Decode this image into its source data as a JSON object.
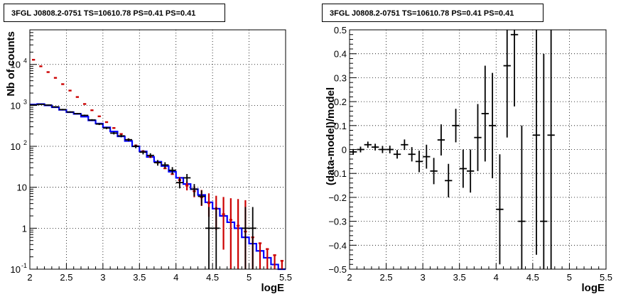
{
  "chart_data": [
    {
      "type": "step",
      "title": "3FGL J0808.2-0751 TS=10610.78 PS=0.41 PS=0.41",
      "xlabel": "logE",
      "ylabel": "Nb of counts",
      "xlim": [
        2,
        5.5
      ],
      "ylim": [
        0.1,
        70000
      ],
      "ylog": true,
      "grid": true,
      "x_ticks": [
        "2",
        "2.5",
        "3",
        "3.5",
        "4",
        "4.5",
        "5",
        "5.5"
      ],
      "y_ticks": [
        "10-1",
        "1",
        "10",
        "102",
        "103",
        "104"
      ],
      "bin_edges": [
        2.0,
        2.1,
        2.2,
        2.3,
        2.4,
        2.5,
        2.6,
        2.7,
        2.8,
        2.9,
        3.0,
        3.1,
        3.2,
        3.3,
        3.4,
        3.5,
        3.6,
        3.7,
        3.8,
        3.9,
        4.0,
        4.1,
        4.2,
        4.3,
        4.4,
        4.5,
        4.6,
        4.7,
        4.8,
        4.9,
        5.0,
        5.1,
        5.2,
        5.3,
        5.4,
        5.5
      ],
      "series": [
        {
          "name": "",
          "color": "#0000ff",
          "style": "histogram",
          "values": [
            1050,
            1080,
            1000,
            900,
            780,
            680,
            620,
            530,
            430,
            360,
            290,
            230,
            175,
            135,
            100,
            75,
            55,
            42,
            33,
            24,
            17,
            12,
            9,
            6.5,
            4.3,
            3.0,
            2.0,
            1.4,
            1.0,
            0.6,
            0.42,
            0.28,
            0.19,
            0.13,
            0.09
          ]
        },
        {
          "name": "",
          "color": "#cc0000",
          "style": "markers",
          "values": [
            13000,
            9000,
            6500,
            4700,
            3300,
            2300,
            1600,
            1080,
            760,
            540,
            390,
            280,
            200,
            145,
            105,
            76,
            55,
            40,
            29,
            21,
            15,
            11,
            8,
            5.7,
            4.1,
            3.0,
            2.2,
            1.6,
            1.15,
            0.83,
            0.6,
            0.43,
            0.31,
            0.22,
            0.16
          ],
          "err_low": [
            0,
            0,
            0,
            0,
            0,
            0,
            0,
            0,
            0,
            0,
            0,
            0,
            0,
            0,
            0,
            0,
            0,
            0,
            0,
            0,
            3,
            2.6,
            2.3,
            2.2,
            2.2,
            2.1,
            1.9,
            1.6,
            1.15,
            0.83,
            0.6,
            0.43,
            0.31,
            0.22,
            0.16
          ],
          "err_high": [
            0,
            0,
            0,
            0,
            0,
            0,
            0,
            0,
            0,
            0,
            0,
            0,
            0,
            0,
            0,
            0,
            0,
            0,
            0,
            0,
            3,
            2.6,
            2.6,
            2.9,
            3,
            3.2,
            3.6,
            3.8,
            4,
            4,
            0,
            0,
            0,
            0,
            0
          ]
        },
        {
          "name": "",
          "color": "#000000",
          "style": "data",
          "x": [
            2.05,
            2.15,
            2.25,
            2.35,
            2.45,
            2.55,
            2.65,
            2.75,
            2.85,
            2.95,
            3.05,
            3.15,
            3.25,
            3.35,
            3.45,
            3.55,
            3.65,
            3.75,
            3.85,
            3.95,
            4.05,
            4.15,
            4.25,
            4.35,
            4.45,
            4.55,
            4.95,
            5.05
          ],
          "y": [
            1020,
            1060,
            1020,
            920,
            790,
            690,
            630,
            570,
            440,
            350,
            280,
            210,
            180,
            145,
            100,
            72,
            60,
            40,
            35,
            26,
            13,
            17,
            9,
            6,
            1,
            1,
            1,
            1
          ],
          "err_low": [
            30,
            30,
            30,
            30,
            30,
            26,
            25,
            24,
            21,
            19,
            17,
            15,
            14,
            12,
            10,
            8.5,
            7.7,
            6.3,
            5.9,
            5.1,
            3.6,
            4.1,
            3,
            2.4,
            0.9,
            0.9,
            0.9,
            0.9
          ],
          "err_high": [
            30,
            30,
            30,
            30,
            30,
            26,
            25,
            24,
            21,
            19,
            17,
            15,
            14,
            12,
            10,
            8.5,
            7.7,
            6.3,
            5.9,
            5.1,
            3.6,
            4.1,
            3,
            2.4,
            2.3,
            2.3,
            2.3,
            2.3
          ]
        }
      ]
    },
    {
      "type": "scatter",
      "title": "3FGL J0808.2-0751 TS=10610.78 PS=0.41 PS=0.41",
      "xlabel": "logE",
      "ylabel": "(data-model)/model",
      "xlim": [
        2,
        5.5
      ],
      "ylim": [
        -0.5,
        0.5
      ],
      "grid": true,
      "x_ticks": [
        "2",
        "2.5",
        "3",
        "3.5",
        "4",
        "4.5",
        "5",
        "5.5"
      ],
      "y_ticks": [
        "−0.5",
        "−0.4",
        "−0.3",
        "−0.2",
        "−0.1",
        "0",
        "0.1",
        "0.2",
        "0.3",
        "0.4",
        "0.5"
      ],
      "series": [
        {
          "name": "",
          "color": "#000000",
          "x": [
            2.05,
            2.15,
            2.25,
            2.35,
            2.45,
            2.55,
            2.65,
            2.75,
            2.85,
            2.95,
            3.05,
            3.15,
            3.25,
            3.35,
            3.45,
            3.55,
            3.65,
            3.75,
            3.85,
            3.95,
            4.05,
            4.15,
            4.25,
            4.35,
            4.55,
            4.65,
            4.75
          ],
          "y": [
            -0.01,
            0.0,
            0.02,
            0.01,
            0.0,
            0.0,
            -0.02,
            0.02,
            -0.02,
            -0.05,
            -0.03,
            -0.09,
            0.04,
            -0.13,
            0.1,
            -0.08,
            -0.09,
            0.05,
            0.15,
            0.1,
            -0.25,
            0.35,
            0.48,
            -0.3,
            0.06,
            -0.3,
            0.06
          ],
          "err": [
            0.012,
            0.012,
            0.013,
            0.014,
            0.015,
            0.016,
            0.018,
            0.022,
            0.03,
            0.045,
            0.05,
            0.055,
            0.065,
            0.07,
            0.07,
            0.08,
            0.09,
            0.14,
            0.2,
            0.22,
            0.23,
            0.3,
            0.3,
            0.4,
            0.5,
            0.7,
            0.6
          ]
        }
      ]
    }
  ]
}
